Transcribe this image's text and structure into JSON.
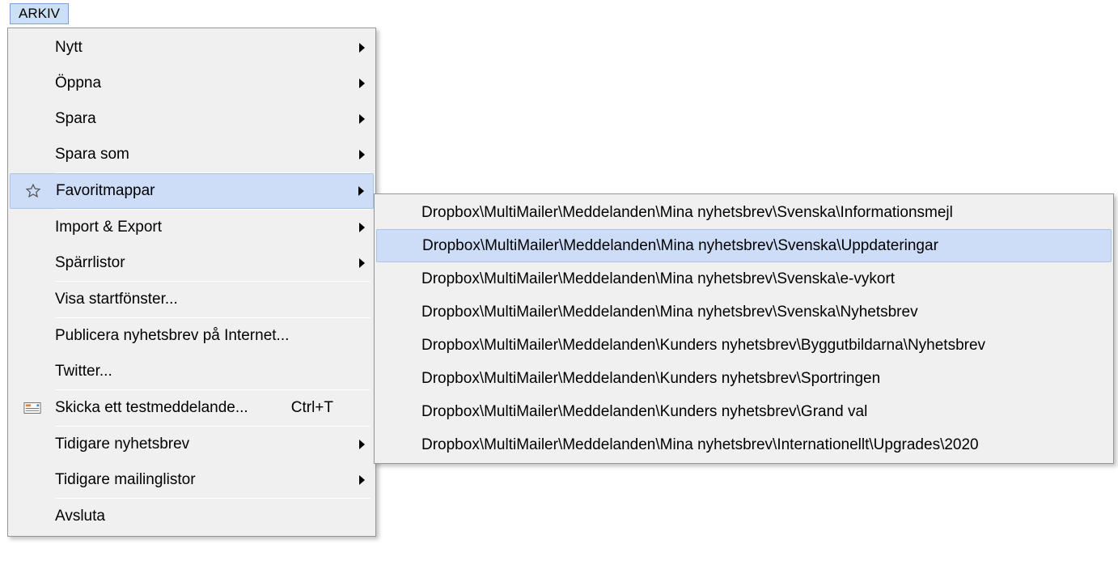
{
  "menubar": {
    "arkiv_label": "ARKIV"
  },
  "menu": {
    "items": [
      {
        "label": "Nytt",
        "has_arrow": true
      },
      {
        "label": "Öppna",
        "has_arrow": true
      },
      {
        "label": "Spara",
        "has_arrow": true
      },
      {
        "label": "Spara som",
        "has_arrow": true
      },
      {
        "sep": true
      },
      {
        "label": "Favoritmappar",
        "has_arrow": true,
        "icon": "star",
        "highlighted": true
      },
      {
        "sep": true
      },
      {
        "label": "Import & Export",
        "has_arrow": true
      },
      {
        "label": "Spärrlistor",
        "has_arrow": true
      },
      {
        "sep": true
      },
      {
        "label": "Visa startfönster..."
      },
      {
        "sep": true
      },
      {
        "label": "Publicera nyhetsbrev på Internet..."
      },
      {
        "label": "Twitter..."
      },
      {
        "sep": true
      },
      {
        "label": "Skicka ett testmeddelande...",
        "shortcut": "Ctrl+T",
        "icon": "test"
      },
      {
        "sep": true
      },
      {
        "label": "Tidigare nyhetsbrev",
        "has_arrow": true
      },
      {
        "label": "Tidigare mailinglistor",
        "has_arrow": true
      },
      {
        "sep": true
      },
      {
        "label": "Avsluta"
      }
    ]
  },
  "submenu": {
    "items": [
      {
        "label": "Dropbox\\MultiMailer\\Meddelanden\\Mina nyhetsbrev\\Svenska\\Informationsmejl"
      },
      {
        "label": "Dropbox\\MultiMailer\\Meddelanden\\Mina nyhetsbrev\\Svenska\\Uppdateringar",
        "highlighted": true
      },
      {
        "label": "Dropbox\\MultiMailer\\Meddelanden\\Mina nyhetsbrev\\Svenska\\e-vykort"
      },
      {
        "label": "Dropbox\\MultiMailer\\Meddelanden\\Mina nyhetsbrev\\Svenska\\Nyhetsbrev"
      },
      {
        "label": "Dropbox\\MultiMailer\\Meddelanden\\Kunders nyhetsbrev\\Byggutbildarna\\Nyhetsbrev"
      },
      {
        "label": "Dropbox\\MultiMailer\\Meddelanden\\Kunders nyhetsbrev\\Sportringen"
      },
      {
        "label": "Dropbox\\MultiMailer\\Meddelanden\\Kunders nyhetsbrev\\Grand val"
      },
      {
        "label": "Dropbox\\MultiMailer\\Meddelanden\\Mina nyhetsbrev\\Internationellt\\Upgrades\\2020"
      }
    ]
  },
  "colors": {
    "highlight_bg": "#cdddf7",
    "highlight_border": "#a8c5e8",
    "menu_bg": "#f0f0f0",
    "menu_border": "#979797",
    "button_bg": "#cce0f5",
    "button_border": "#7da2ce"
  }
}
